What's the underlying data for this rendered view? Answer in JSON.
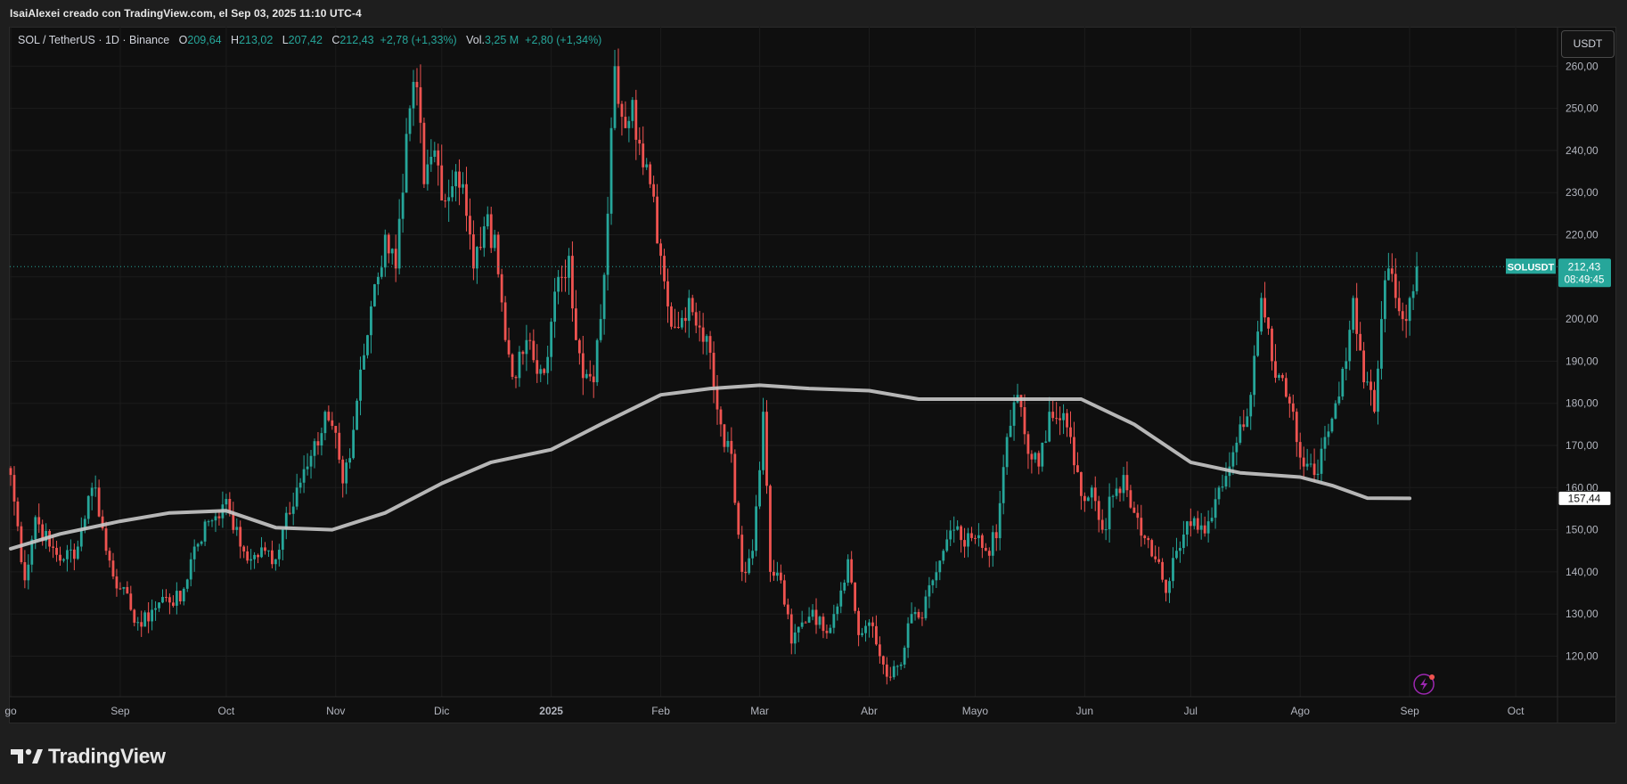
{
  "header": {
    "attribution": "IsaiAlexei creado con TradingView.com, el Sep 03, 2025 11:10 UTC-4"
  },
  "legend": {
    "symbol": "SOL / TetherUS · 1D · Binance",
    "open_label": "O",
    "open": "209,64",
    "high_label": "H",
    "high": "213,02",
    "low_label": "L",
    "low": "207,42",
    "close_label": "C",
    "close": "212,43",
    "change": "+2,78 (+1,33%)",
    "vol_label": "Vol.",
    "vol": "3,25 M",
    "vol_change": "+2,80 (+1,34%)"
  },
  "currency_button": "USDT",
  "footer": {
    "brand": "TradingView"
  },
  "colors": {
    "up": "#26a69a",
    "down": "#ef5350",
    "ma": "#c9c9c9",
    "background": "#0f0f0f"
  },
  "chart_data": {
    "type": "candlestick",
    "symbol": "SOLUSDT",
    "interval": "1D",
    "exchange": "Binance",
    "ylim": [
      113,
      265
    ],
    "y_ticks": [
      "120,00",
      "130,00",
      "140,00",
      "150,00",
      "160,00",
      "170,00",
      "180,00",
      "190,00",
      "200,00",
      "210,00",
      "220,00",
      "230,00",
      "240,00",
      "250,00",
      "260,00"
    ],
    "y_tick_values": [
      120,
      130,
      140,
      150,
      160,
      170,
      180,
      190,
      200,
      210,
      220,
      230,
      240,
      250,
      260
    ],
    "x_ticks": [
      {
        "label": "go",
        "date": "2024-08-01"
      },
      {
        "label": "Sep",
        "date": "2024-09-01"
      },
      {
        "label": "Oct",
        "date": "2024-10-01"
      },
      {
        "label": "Nov",
        "date": "2024-11-01"
      },
      {
        "label": "Dic",
        "date": "2024-12-01"
      },
      {
        "label": "2025",
        "date": "2025-01-01"
      },
      {
        "label": "Feb",
        "date": "2025-02-01"
      },
      {
        "label": "Mar",
        "date": "2025-03-01"
      },
      {
        "label": "Abr",
        "date": "2025-04-01"
      },
      {
        "label": "Mayo",
        "date": "2025-05-01"
      },
      {
        "label": "Jun",
        "date": "2025-06-01"
      },
      {
        "label": "Jul",
        "date": "2025-07-01"
      },
      {
        "label": "Ago",
        "date": "2025-08-01"
      },
      {
        "label": "Sep",
        "date": "2025-09-01"
      },
      {
        "label": "Oct",
        "date": "2025-10-01"
      }
    ],
    "last_price": {
      "symbol": "SOLUSDT",
      "value": 212.43,
      "label": "212,43",
      "countdown": "08:49:45"
    },
    "moving_average": {
      "last_label": "157,44",
      "points": [
        [
          "2024-08-01",
          145.5
        ],
        [
          "2024-08-15",
          149
        ],
        [
          "2024-09-01",
          152
        ],
        [
          "2024-09-15",
          154
        ],
        [
          "2024-10-01",
          154.5
        ],
        [
          "2024-10-15",
          150.5
        ],
        [
          "2024-10-31",
          150
        ],
        [
          "2024-11-15",
          154
        ],
        [
          "2024-12-01",
          161
        ],
        [
          "2024-12-15",
          166
        ],
        [
          "2025-01-01",
          169
        ],
        [
          "2025-01-15",
          175
        ],
        [
          "2025-02-01",
          182
        ],
        [
          "2025-02-15",
          183.5
        ],
        [
          "2025-03-01",
          184.3
        ],
        [
          "2025-03-15",
          183.5
        ],
        [
          "2025-04-01",
          183
        ],
        [
          "2025-04-15",
          181
        ],
        [
          "2025-05-01",
          181
        ],
        [
          "2025-05-15",
          181
        ],
        [
          "2025-05-31",
          181
        ],
        [
          "2025-06-15",
          175
        ],
        [
          "2025-07-01",
          166
        ],
        [
          "2025-07-15",
          163.5
        ],
        [
          "2025-08-01",
          162.5
        ],
        [
          "2025-08-10",
          160.5
        ],
        [
          "2025-08-20",
          157.5
        ],
        [
          "2025-09-01",
          157.44
        ]
      ]
    },
    "closes": [
      [
        "2024-08-01",
        163
      ],
      [
        "2024-08-05",
        138
      ],
      [
        "2024-08-08",
        153
      ],
      [
        "2024-08-12",
        146
      ],
      [
        "2024-08-16",
        143
      ],
      [
        "2024-08-20",
        146
      ],
      [
        "2024-08-23",
        158
      ],
      [
        "2024-08-25",
        160
      ],
      [
        "2024-08-28",
        145
      ],
      [
        "2024-09-01",
        136
      ],
      [
        "2024-09-04",
        131
      ],
      [
        "2024-09-07",
        127
      ],
      [
        "2024-09-10",
        131
      ],
      [
        "2024-09-14",
        134
      ],
      [
        "2024-09-18",
        133
      ],
      [
        "2024-09-22",
        146
      ],
      [
        "2024-09-26",
        152
      ],
      [
        "2024-09-30",
        156
      ],
      [
        "2024-10-02",
        154
      ],
      [
        "2024-10-05",
        146
      ],
      [
        "2024-10-08",
        143
      ],
      [
        "2024-10-12",
        145
      ],
      [
        "2024-10-15",
        143
      ],
      [
        "2024-10-18",
        154
      ],
      [
        "2024-10-21",
        160
      ],
      [
        "2024-10-24",
        165
      ],
      [
        "2024-10-27",
        170
      ],
      [
        "2024-10-29",
        178
      ],
      [
        "2024-11-01",
        173
      ],
      [
        "2024-11-03",
        161
      ],
      [
        "2024-11-05",
        167
      ],
      [
        "2024-11-08",
        188
      ],
      [
        "2024-11-11",
        203
      ],
      [
        "2024-11-13",
        210
      ],
      [
        "2024-11-15",
        220
      ],
      [
        "2024-11-18",
        212
      ],
      [
        "2024-11-20",
        230
      ],
      [
        "2024-11-22",
        250
      ],
      [
        "2024-11-24",
        255
      ],
      [
        "2024-11-26",
        232
      ],
      [
        "2024-11-29",
        240
      ],
      [
        "2024-12-02",
        228
      ],
      [
        "2024-12-05",
        235
      ],
      [
        "2024-12-07",
        232
      ],
      [
        "2024-12-10",
        212
      ],
      [
        "2024-12-13",
        222
      ],
      [
        "2024-12-16",
        220
      ],
      [
        "2024-12-19",
        195
      ],
      [
        "2024-12-22",
        186
      ],
      [
        "2024-12-25",
        195
      ],
      [
        "2024-12-28",
        187
      ],
      [
        "2024-12-31",
        191
      ],
      [
        "2025-01-03",
        210
      ],
      [
        "2025-01-06",
        215
      ],
      [
        "2025-01-08",
        195
      ],
      [
        "2025-01-10",
        186
      ],
      [
        "2025-01-13",
        185
      ],
      [
        "2025-01-15",
        200
      ],
      [
        "2025-01-17",
        225
      ],
      [
        "2025-01-19",
        260
      ],
      [
        "2025-01-21",
        248
      ],
      [
        "2025-01-24",
        252
      ],
      [
        "2025-01-27",
        236
      ],
      [
        "2025-01-29",
        232
      ],
      [
        "2025-02-01",
        215
      ],
      [
        "2025-02-03",
        203
      ],
      [
        "2025-02-06",
        198
      ],
      [
        "2025-02-09",
        205
      ],
      [
        "2025-02-12",
        198
      ],
      [
        "2025-02-15",
        192
      ],
      [
        "2025-02-18",
        175
      ],
      [
        "2025-02-21",
        168
      ],
      [
        "2025-02-24",
        140
      ],
      [
        "2025-02-27",
        145
      ],
      [
        "2025-03-02",
        178
      ],
      [
        "2025-03-04",
        140
      ],
      [
        "2025-03-07",
        138
      ],
      [
        "2025-03-10",
        123
      ],
      [
        "2025-03-13",
        128
      ],
      [
        "2025-03-16",
        131
      ],
      [
        "2025-03-19",
        126
      ],
      [
        "2025-03-22",
        130
      ],
      [
        "2025-03-26",
        143
      ],
      [
        "2025-03-29",
        125
      ],
      [
        "2025-04-01",
        128
      ],
      [
        "2025-04-04",
        120
      ],
      [
        "2025-04-07",
        115
      ],
      [
        "2025-04-10",
        118
      ],
      [
        "2025-04-13",
        130
      ],
      [
        "2025-04-16",
        129
      ],
      [
        "2025-04-19",
        138
      ],
      [
        "2025-04-22",
        145
      ],
      [
        "2025-04-25",
        150
      ],
      [
        "2025-04-28",
        146
      ],
      [
        "2025-05-01",
        148
      ],
      [
        "2025-05-04",
        145
      ],
      [
        "2025-05-07",
        148
      ],
      [
        "2025-05-10",
        172
      ],
      [
        "2025-05-13",
        182
      ],
      [
        "2025-05-16",
        168
      ],
      [
        "2025-05-19",
        165
      ],
      [
        "2025-05-22",
        178
      ],
      [
        "2025-05-25",
        176
      ],
      [
        "2025-05-28",
        172
      ],
      [
        "2025-05-31",
        158
      ],
      [
        "2025-06-03",
        160
      ],
      [
        "2025-06-06",
        150
      ],
      [
        "2025-06-09",
        158
      ],
      [
        "2025-06-12",
        163
      ],
      [
        "2025-06-15",
        154
      ],
      [
        "2025-06-18",
        148
      ],
      [
        "2025-06-21",
        143
      ],
      [
        "2025-06-24",
        135
      ],
      [
        "2025-06-27",
        145
      ],
      [
        "2025-06-30",
        152
      ],
      [
        "2025-07-03",
        150
      ],
      [
        "2025-07-06",
        152
      ],
      [
        "2025-07-09",
        160
      ],
      [
        "2025-07-12",
        165
      ],
      [
        "2025-07-15",
        175
      ],
      [
        "2025-07-18",
        182
      ],
      [
        "2025-07-21",
        205
      ],
      [
        "2025-07-24",
        190
      ],
      [
        "2025-07-27",
        186
      ],
      [
        "2025-07-30",
        178
      ],
      [
        "2025-08-02",
        165
      ],
      [
        "2025-08-05",
        163
      ],
      [
        "2025-08-08",
        172
      ],
      [
        "2025-08-11",
        180
      ],
      [
        "2025-08-14",
        190
      ],
      [
        "2025-08-16",
        205
      ],
      [
        "2025-08-19",
        185
      ],
      [
        "2025-08-22",
        178
      ],
      [
        "2025-08-24",
        200
      ],
      [
        "2025-08-26",
        212
      ],
      [
        "2025-08-28",
        205
      ],
      [
        "2025-08-30",
        200
      ],
      [
        "2025-09-01",
        205
      ],
      [
        "2025-09-03",
        212.43
      ]
    ]
  }
}
